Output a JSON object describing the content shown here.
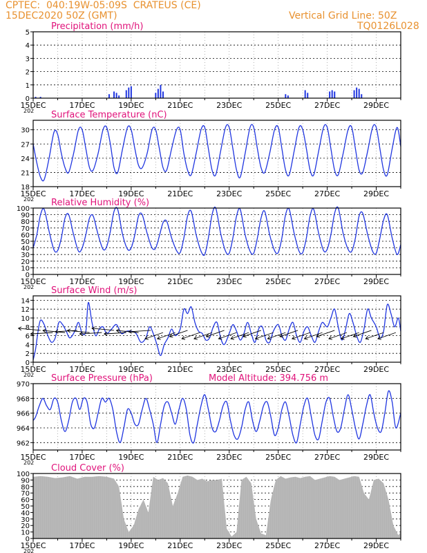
{
  "header": {
    "source": "CPTEC:",
    "location": "040:19W-05:09S  CRATEUS (CE)",
    "date": "15DEC2020 50Z (GMT)",
    "grid_note": "Vertical Grid Line: 50Z",
    "run_id": "TQ0126L028"
  },
  "colors": {
    "line": "#1f35e0",
    "title": "#e0127a",
    "header": "#e8912f",
    "cloud": "#b3b3b3",
    "arrows": "#000000"
  },
  "chart_data": [
    {
      "id": "precip",
      "type": "bar",
      "title": "Precipitation (mm/h)",
      "ylim": [
        0,
        5
      ],
      "yticks": [
        0,
        1,
        2,
        3,
        4,
        5
      ],
      "x_range_days": [
        15,
        30
      ],
      "xticks": [
        "15DEC",
        "17DEC",
        "19DEC",
        "21DEC",
        "23DEC",
        "25DEC",
        "27DEC",
        "29DEC"
      ],
      "year_label": "202",
      "x": [
        15.1,
        15.3,
        18.1,
        18.3,
        18.4,
        18.5,
        18.8,
        18.9,
        19.0,
        20.0,
        20.1,
        20.2,
        20.3,
        25.3,
        25.4,
        26.1,
        26.2,
        27.1,
        27.2,
        27.3,
        28.1,
        28.2,
        28.3,
        28.4
      ],
      "values": [
        0.1,
        0.1,
        0.3,
        0.5,
        0.4,
        0.2,
        0.6,
        0.8,
        0.9,
        0.4,
        0.7,
        1.0,
        0.5,
        0.3,
        0.2,
        0.6,
        0.4,
        0.5,
        0.6,
        0.5,
        0.6,
        0.8,
        0.7,
        0.3
      ]
    },
    {
      "id": "temp",
      "type": "line",
      "title": "Surface Temperature (nC)",
      "ylim": [
        18,
        32
      ],
      "yticks": [
        18,
        21,
        24,
        27,
        30
      ],
      "x_range_days": [
        15,
        30
      ],
      "xticks": [
        "15DEC",
        "17DEC",
        "19DEC",
        "21DEC",
        "23DEC",
        "25DEC",
        "27DEC",
        "29DEC"
      ],
      "year_label": "202",
      "x": [
        15.0,
        15.15,
        15.3,
        15.45,
        15.65,
        15.85,
        16.0,
        16.15,
        16.3,
        16.45,
        16.65,
        16.85,
        17.0,
        17.15,
        17.3,
        17.45,
        17.65,
        17.85,
        18.0,
        18.15,
        18.3,
        18.45,
        18.65,
        18.85,
        19.0,
        19.15,
        19.3,
        19.45,
        19.65,
        19.85,
        20.0,
        20.15,
        20.3,
        20.45,
        20.65,
        20.85,
        21.0,
        21.15,
        21.3,
        21.45,
        21.65,
        21.85,
        22.0,
        22.15,
        22.3,
        22.45,
        22.65,
        22.85,
        23.0,
        23.15,
        23.3,
        23.45,
        23.65,
        23.85,
        24.0,
        24.15,
        24.3,
        24.45,
        24.65,
        24.85,
        25.0,
        25.15,
        25.3,
        25.45,
        25.65,
        25.85,
        26.0,
        26.15,
        26.3,
        26.45,
        26.65,
        26.85,
        27.0,
        27.15,
        27.3,
        27.45,
        27.65,
        27.85,
        28.0,
        28.15,
        28.3,
        28.45,
        28.65,
        28.85,
        29.0,
        29.15,
        29.3,
        29.45,
        29.65,
        29.85,
        30.0
      ],
      "values": [
        27.0,
        23,
        20,
        19.5,
        24,
        29.5,
        29,
        25,
        22,
        21,
        25,
        30,
        30,
        26,
        22,
        21.5,
        25,
        30,
        30.5,
        27,
        22,
        21,
        26,
        30.5,
        30,
        26,
        22.5,
        22,
        25,
        30,
        30,
        26,
        22,
        21.5,
        26,
        30,
        30,
        25,
        21.5,
        20.5,
        25,
        30,
        30.5,
        26,
        21.5,
        20.5,
        25.5,
        30.5,
        30.5,
        26,
        21.5,
        20,
        25,
        30.5,
        30.5,
        26,
        22,
        21,
        25,
        30,
        30.5,
        26,
        21.5,
        20.5,
        25.5,
        30.5,
        30,
        26,
        21.5,
        20.5,
        25.5,
        30.5,
        30.5,
        26,
        21.5,
        20.5,
        25,
        30,
        30.5,
        26,
        21.5,
        21,
        25.5,
        30.5,
        30.5,
        26,
        21.5,
        20.5,
        26,
        30.5,
        26.5
      ]
    },
    {
      "id": "rh",
      "type": "line",
      "title": "Relative Humidity (%)",
      "ylim": [
        0,
        100
      ],
      "yticks": [
        0,
        10,
        20,
        30,
        40,
        50,
        60,
        70,
        80,
        90,
        100
      ],
      "x_range_days": [
        15,
        30
      ],
      "xticks": [
        "15DEC",
        "17DEC",
        "19DEC",
        "21DEC",
        "23DEC",
        "25DEC",
        "27DEC",
        "29DEC"
      ],
      "year_label": "202",
      "x": [
        15.0,
        15.15,
        15.3,
        15.45,
        15.65,
        15.85,
        16.0,
        16.15,
        16.3,
        16.45,
        16.65,
        16.85,
        17.0,
        17.15,
        17.3,
        17.45,
        17.65,
        17.85,
        18.0,
        18.15,
        18.3,
        18.45,
        18.65,
        18.85,
        19.0,
        19.15,
        19.3,
        19.45,
        19.65,
        19.85,
        20.0,
        20.15,
        20.3,
        20.45,
        20.65,
        20.85,
        21.0,
        21.15,
        21.3,
        21.45,
        21.65,
        21.85,
        22.0,
        22.15,
        22.3,
        22.45,
        22.65,
        22.85,
        23.0,
        23.15,
        23.3,
        23.45,
        23.65,
        23.85,
        24.0,
        24.15,
        24.3,
        24.45,
        24.65,
        24.85,
        25.0,
        25.15,
        25.3,
        25.45,
        25.65,
        25.85,
        26.0,
        26.15,
        26.3,
        26.45,
        26.65,
        26.85,
        27.0,
        27.15,
        27.3,
        27.45,
        27.65,
        27.85,
        28.0,
        28.15,
        28.3,
        28.45,
        28.65,
        28.85,
        29.0,
        29.15,
        29.3,
        29.45,
        29.65,
        29.85,
        30.0
      ],
      "values": [
        40,
        60,
        90,
        98,
        65,
        37,
        36,
        55,
        85,
        90,
        60,
        35,
        40,
        60,
        85,
        88,
        60,
        38,
        42,
        65,
        95,
        98,
        60,
        38,
        40,
        60,
        88,
        90,
        62,
        40,
        40,
        58,
        78,
        80,
        55,
        36,
        33,
        55,
        88,
        95,
        60,
        35,
        30,
        55,
        90,
        100,
        62,
        35,
        32,
        55,
        88,
        98,
        60,
        35,
        32,
        55,
        85,
        95,
        60,
        36,
        33,
        55,
        90,
        98,
        62,
        35,
        33,
        55,
        88,
        98,
        62,
        36,
        38,
        60,
        92,
        100,
        62,
        38,
        35,
        55,
        88,
        92,
        60,
        35,
        32,
        55,
        82,
        90,
        55,
        30,
        45
      ]
    },
    {
      "id": "wind",
      "type": "line",
      "title": "Surface Wind (m/s)",
      "ylim": [
        0,
        15
      ],
      "yticks": [
        0,
        2,
        4,
        6,
        8,
        10,
        12,
        14
      ],
      "x_range_days": [
        15,
        30
      ],
      "xticks": [
        "15DEC",
        "17DEC",
        "19DEC",
        "21DEC",
        "23DEC",
        "25DEC",
        "27DEC",
        "29DEC"
      ],
      "year_label": "202",
      "x": [
        15.0,
        15.1,
        15.2,
        15.3,
        15.45,
        15.6,
        15.75,
        15.9,
        16.05,
        16.2,
        16.35,
        16.5,
        16.7,
        16.85,
        17.0,
        17.15,
        17.25,
        17.4,
        17.55,
        17.7,
        17.85,
        18.0,
        18.2,
        18.4,
        18.6,
        18.8,
        19.0,
        19.2,
        19.4,
        19.6,
        19.75,
        19.9,
        20.05,
        20.2,
        20.35,
        20.5,
        20.65,
        20.8,
        21.0,
        21.15,
        21.3,
        21.45,
        21.6,
        21.75,
        21.9,
        22.05,
        22.2,
        22.35,
        22.5,
        22.65,
        22.8,
        23.0,
        23.15,
        23.3,
        23.45,
        23.6,
        23.75,
        23.9,
        24.05,
        24.2,
        24.35,
        24.5,
        24.65,
        24.8,
        25.0,
        25.15,
        25.3,
        25.45,
        25.6,
        25.75,
        25.9,
        26.05,
        26.2,
        26.35,
        26.5,
        26.65,
        26.8,
        27.0,
        27.15,
        27.3,
        27.45,
        27.6,
        27.75,
        27.9,
        28.05,
        28.2,
        28.35,
        28.5,
        28.65,
        28.8,
        29.0,
        29.15,
        29.3,
        29.45,
        29.6,
        29.75,
        29.9,
        30.0
      ],
      "values": [
        0.5,
        3,
        7,
        9.5,
        8.5,
        6,
        4.5,
        5.5,
        9,
        8.5,
        7,
        5.5,
        7,
        9,
        6.5,
        7,
        13.5,
        9,
        6,
        7.5,
        8,
        6.5,
        7.5,
        8.5,
        6.5,
        7,
        7,
        6.5,
        4.5,
        5.5,
        8,
        6.5,
        4,
        1.5,
        4,
        5.5,
        7.5,
        6,
        7.5,
        12,
        11,
        12.5,
        9,
        7,
        6.5,
        5,
        5.5,
        8,
        9,
        5.5,
        4,
        6.5,
        8.5,
        7,
        5,
        6.5,
        9,
        6.5,
        4.5,
        7.5,
        8,
        5,
        4.5,
        7,
        8.5,
        6,
        5,
        7.5,
        9,
        6,
        4.5,
        7,
        8,
        6,
        4.5,
        7,
        9,
        8,
        10,
        12,
        8,
        5,
        7.5,
        11,
        9,
        6,
        4.5,
        7.5,
        12,
        10,
        8,
        5.5,
        7,
        13,
        11,
        8,
        10,
        7
      ]
    },
    {
      "id": "pressure",
      "type": "line",
      "title": "Surface Pressure (hPa)",
      "annotation": "Model Altitude: 394.756  m",
      "ylim": [
        961,
        970
      ],
      "yticks": [
        962,
        964,
        966,
        968,
        970
      ],
      "x_range_days": [
        15,
        30
      ],
      "xticks": [
        "15DEC",
        "17DEC",
        "19DEC",
        "21DEC",
        "23DEC",
        "25DEC",
        "27DEC",
        "29DEC"
      ],
      "year_label": "202",
      "x": [
        15.0,
        15.1,
        15.25,
        15.4,
        15.55,
        15.7,
        15.85,
        16.0,
        16.15,
        16.3,
        16.45,
        16.6,
        16.75,
        16.9,
        17.05,
        17.2,
        17.35,
        17.5,
        17.65,
        17.8,
        17.95,
        18.1,
        18.25,
        18.4,
        18.55,
        18.7,
        18.85,
        19.0,
        19.15,
        19.3,
        19.45,
        19.6,
        19.75,
        19.9,
        20.05,
        20.2,
        20.35,
        20.5,
        20.65,
        20.8,
        20.95,
        21.1,
        21.25,
        21.4,
        21.55,
        21.7,
        21.85,
        22.0,
        22.15,
        22.3,
        22.45,
        22.6,
        22.75,
        22.9,
        23.05,
        23.2,
        23.35,
        23.5,
        23.65,
        23.8,
        23.95,
        24.1,
        24.25,
        24.4,
        24.55,
        24.7,
        24.85,
        25.0,
        25.15,
        25.3,
        25.45,
        25.6,
        25.75,
        25.9,
        26.05,
        26.2,
        26.35,
        26.5,
        26.65,
        26.8,
        26.95,
        27.1,
        27.25,
        27.4,
        27.55,
        27.7,
        27.85,
        28.0,
        28.15,
        28.3,
        28.45,
        28.6,
        28.75,
        28.9,
        29.05,
        29.2,
        29.35,
        29.5,
        29.65,
        29.8,
        30.0
      ],
      "values": [
        965,
        965.5,
        967,
        968,
        967,
        966.5,
        968,
        967.5,
        965,
        963.5,
        965,
        967.5,
        968,
        966.5,
        968,
        967.5,
        964.5,
        964,
        966,
        968,
        967.5,
        968,
        966.5,
        963.5,
        962,
        964,
        966.5,
        966,
        964.5,
        964.5,
        966.5,
        968,
        966.5,
        964.5,
        962,
        964.5,
        967,
        967.5,
        966,
        964.5,
        966.5,
        968,
        966.5,
        963,
        962,
        964.5,
        967,
        968.5,
        966.5,
        964,
        963.5,
        965,
        967,
        967.5,
        965,
        963,
        962.5,
        964,
        966.5,
        967.5,
        965,
        963.5,
        965,
        967,
        967.5,
        965.5,
        963,
        964,
        966.5,
        967.5,
        965.5,
        963,
        962,
        964.5,
        967,
        968,
        965.5,
        963,
        962.5,
        965,
        967.5,
        968,
        965.5,
        963.5,
        964,
        966.5,
        968.5,
        966.5,
        964,
        962.5,
        964.5,
        967,
        968.5,
        966,
        964,
        963.5,
        966,
        969,
        967.5,
        964,
        966
      ]
    },
    {
      "id": "cloud",
      "type": "area",
      "title": "Cloud Cover (%)",
      "ylim": [
        0,
        100
      ],
      "yticks": [
        0,
        10,
        20,
        30,
        40,
        50,
        60,
        70,
        80,
        90,
        100
      ],
      "x_range_days": [
        15,
        30
      ],
      "xticks": [
        "15DEC",
        "17DEC",
        "19DEC",
        "21DEC",
        "23DEC",
        "25DEC",
        "27DEC",
        "29DEC"
      ],
      "year_label": "202",
      "x": [
        15.0,
        15.3,
        15.6,
        15.9,
        16.2,
        16.5,
        16.8,
        17.1,
        17.4,
        17.7,
        18.0,
        18.3,
        18.5,
        18.7,
        18.9,
        19.1,
        19.3,
        19.5,
        19.7,
        19.9,
        20.1,
        20.3,
        20.5,
        20.7,
        20.9,
        21.1,
        21.3,
        21.5,
        21.7,
        21.9,
        22.1,
        22.3,
        22.5,
        22.7,
        22.9,
        23.1,
        23.3,
        23.5,
        23.7,
        23.9,
        24.1,
        24.3,
        24.5,
        24.7,
        24.9,
        25.1,
        25.3,
        25.5,
        25.7,
        25.9,
        26.1,
        26.3,
        26.5,
        26.7,
        26.9,
        27.1,
        27.3,
        27.5,
        27.7,
        27.9,
        28.1,
        28.3,
        28.5,
        28.7,
        28.9,
        29.1,
        29.3,
        29.5,
        29.7,
        29.9,
        30.0
      ],
      "values": [
        95,
        96,
        95,
        93,
        94,
        96,
        92,
        95,
        95,
        96,
        95,
        92,
        80,
        30,
        10,
        20,
        45,
        60,
        40,
        95,
        90,
        93,
        85,
        50,
        70,
        95,
        97,
        95,
        90,
        92,
        88,
        90,
        90,
        92,
        15,
        3,
        10,
        90,
        95,
        85,
        30,
        8,
        5,
        60,
        90,
        96,
        92,
        94,
        95,
        93,
        95,
        96,
        90,
        92,
        94,
        96,
        95,
        90,
        92,
        94,
        96,
        95,
        70,
        60,
        90,
        92,
        85,
        60,
        20,
        5,
        10
      ]
    }
  ]
}
